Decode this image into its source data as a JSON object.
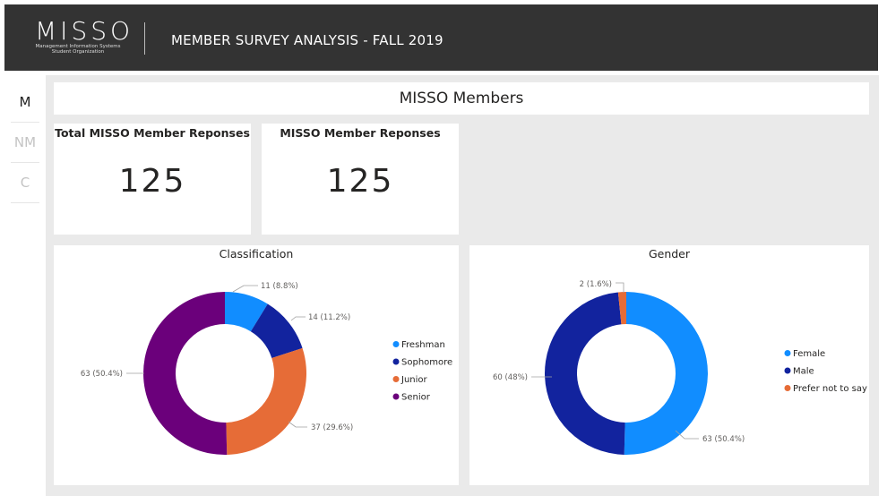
{
  "header": {
    "logo_text": "MISSO",
    "logo_subtitle_line1": "Management Information Systems",
    "logo_subtitle_line2": "Student Organization",
    "title": "MEMBER SURVEY ANALYSIS - FALL 2019"
  },
  "sidenav": {
    "items": [
      {
        "label": "M",
        "active": true
      },
      {
        "label": "NM",
        "active": false
      },
      {
        "label": "C",
        "active": false
      }
    ]
  },
  "page_title": "MISSO Members",
  "kpis": [
    {
      "title": "Total MISSO Member Reponses",
      "value": "125"
    },
    {
      "title": "MISSO Member Reponses",
      "value": "125"
    }
  ],
  "chart_data": [
    {
      "type": "pie",
      "title": "Classification",
      "donut": true,
      "categories": [
        "Freshman",
        "Sophomore",
        "Junior",
        "Senior"
      ],
      "values": [
        11,
        14,
        37,
        63
      ],
      "labels": [
        "11 (8.8%)",
        "14 (11.2%)",
        "37 (29.6%)",
        "63 (50.4%)"
      ],
      "colors": [
        "#118DFF",
        "#12239E",
        "#E66C37",
        "#6B007B"
      ],
      "legend": "right"
    },
    {
      "type": "pie",
      "title": "Gender",
      "donut": true,
      "categories": [
        "Female",
        "Male",
        "Prefer not to say"
      ],
      "values": [
        63,
        60,
        2
      ],
      "labels": [
        "63 (50.4%)",
        "60 (48%)",
        "2 (1.6%)"
      ],
      "colors": [
        "#118DFF",
        "#12239E",
        "#E66C37"
      ],
      "legend": "right"
    }
  ]
}
